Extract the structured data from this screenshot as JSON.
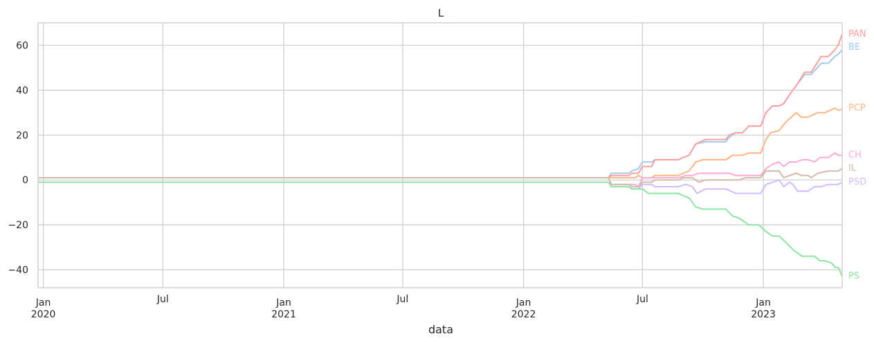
{
  "chart_data": {
    "type": "line",
    "title": "L",
    "xlabel": "data",
    "ylabel": "",
    "xlim": [
      "2019-12-24",
      "2023-05-01"
    ],
    "ylim": [
      -48,
      70
    ],
    "yticks": [
      -40,
      -20,
      0,
      20,
      40,
      60
    ],
    "xticks": [
      {
        "date": "2020-01-01",
        "label": "Jan",
        "sublabel": "2020"
      },
      {
        "date": "2020-07-01",
        "label": "Jul",
        "sublabel": ""
      },
      {
        "date": "2021-01-01",
        "label": "Jan",
        "sublabel": "2021"
      },
      {
        "date": "2021-07-01",
        "label": "Jul",
        "sublabel": ""
      },
      {
        "date": "2022-01-01",
        "label": "Jan",
        "sublabel": "2022"
      },
      {
        "date": "2022-07-01",
        "label": "Jul",
        "sublabel": ""
      },
      {
        "date": "2023-01-01",
        "label": "Jan",
        "sublabel": "2023"
      }
    ],
    "grid": true,
    "legend": "end-of-line labels",
    "series": [
      {
        "name": "BE",
        "color": "#a1c9f4",
        "points": [
          [
            "2019-12-24",
            1
          ],
          [
            "2022-05-10",
            1
          ],
          [
            "2022-05-15",
            3
          ],
          [
            "2022-06-10",
            3
          ],
          [
            "2022-06-15",
            4
          ],
          [
            "2022-06-25",
            5
          ],
          [
            "2022-07-01",
            8
          ],
          [
            "2022-07-15",
            8
          ],
          [
            "2022-07-20",
            9
          ],
          [
            "2022-08-25",
            9
          ],
          [
            "2022-09-01",
            10
          ],
          [
            "2022-09-10",
            11
          ],
          [
            "2022-09-20",
            16
          ],
          [
            "2022-10-05",
            17
          ],
          [
            "2022-11-05",
            17
          ],
          [
            "2022-11-10",
            19
          ],
          [
            "2022-11-20",
            21
          ],
          [
            "2022-11-30",
            21
          ],
          [
            "2022-12-10",
            24
          ],
          [
            "2022-12-28",
            24
          ],
          [
            "2023-01-05",
            30
          ],
          [
            "2023-01-15",
            33
          ],
          [
            "2023-01-25",
            33
          ],
          [
            "2023-02-01",
            34
          ],
          [
            "2023-02-10",
            38
          ],
          [
            "2023-02-20",
            42
          ],
          [
            "2023-03-05",
            47
          ],
          [
            "2023-03-15",
            47
          ],
          [
            "2023-03-30",
            52
          ],
          [
            "2023-04-10",
            52
          ],
          [
            "2023-04-20",
            55
          ],
          [
            "2023-04-25",
            56
          ],
          [
            "2023-05-01",
            58
          ]
        ]
      },
      {
        "name": "PAN",
        "color": "#ff9f9b",
        "points": [
          [
            "2019-12-24",
            1
          ],
          [
            "2022-05-10",
            1
          ],
          [
            "2022-05-15",
            2
          ],
          [
            "2022-06-10",
            2
          ],
          [
            "2022-06-15",
            3
          ],
          [
            "2022-06-25",
            3
          ],
          [
            "2022-07-01",
            6
          ],
          [
            "2022-07-15",
            6
          ],
          [
            "2022-07-20",
            9
          ],
          [
            "2022-08-25",
            9
          ],
          [
            "2022-09-01",
            10
          ],
          [
            "2022-09-10",
            11
          ],
          [
            "2022-09-20",
            16
          ],
          [
            "2022-10-05",
            18
          ],
          [
            "2022-11-05",
            18
          ],
          [
            "2022-11-10",
            20
          ],
          [
            "2022-11-20",
            21
          ],
          [
            "2022-11-30",
            21
          ],
          [
            "2022-12-10",
            24
          ],
          [
            "2022-12-28",
            24
          ],
          [
            "2023-01-05",
            30
          ],
          [
            "2023-01-15",
            33
          ],
          [
            "2023-01-25",
            33
          ],
          [
            "2023-02-01",
            34
          ],
          [
            "2023-02-10",
            38
          ],
          [
            "2023-02-20",
            42
          ],
          [
            "2023-03-05",
            48
          ],
          [
            "2023-03-15",
            48
          ],
          [
            "2023-03-30",
            55
          ],
          [
            "2023-04-10",
            55
          ],
          [
            "2023-04-20",
            58
          ],
          [
            "2023-04-25",
            60
          ],
          [
            "2023-05-01",
            65
          ]
        ]
      },
      {
        "name": "PCP",
        "color": "#ffb482",
        "points": [
          [
            "2019-12-24",
            1
          ],
          [
            "2022-05-10",
            1
          ],
          [
            "2022-05-15",
            1
          ],
          [
            "2022-06-20",
            1
          ],
          [
            "2022-06-25",
            2
          ],
          [
            "2022-07-01",
            1
          ],
          [
            "2022-07-15",
            1
          ],
          [
            "2022-07-20",
            2
          ],
          [
            "2022-08-25",
            2
          ],
          [
            "2022-09-01",
            3
          ],
          [
            "2022-09-10",
            4
          ],
          [
            "2022-09-20",
            8
          ],
          [
            "2022-10-01",
            9
          ],
          [
            "2022-11-05",
            9
          ],
          [
            "2022-11-15",
            11
          ],
          [
            "2022-11-30",
            11
          ],
          [
            "2022-12-10",
            12
          ],
          [
            "2022-12-28",
            12
          ],
          [
            "2023-01-05",
            18
          ],
          [
            "2023-01-12",
            21
          ],
          [
            "2023-01-25",
            22
          ],
          [
            "2023-02-05",
            26
          ],
          [
            "2023-02-20",
            30
          ],
          [
            "2023-02-28",
            28
          ],
          [
            "2023-03-10",
            28
          ],
          [
            "2023-03-25",
            30
          ],
          [
            "2023-04-05",
            30
          ],
          [
            "2023-04-20",
            32
          ],
          [
            "2023-04-25",
            31
          ],
          [
            "2023-05-01",
            31.5
          ]
        ]
      },
      {
        "name": "CH",
        "color": "#ffa9d7",
        "points": [
          [
            "2019-12-24",
            -1
          ],
          [
            "2022-05-10",
            -1
          ],
          [
            "2022-05-15",
            -2
          ],
          [
            "2022-06-20",
            -2
          ],
          [
            "2022-06-25",
            -3
          ],
          [
            "2022-07-01",
            1
          ],
          [
            "2022-07-15",
            1
          ],
          [
            "2022-07-20",
            1
          ],
          [
            "2022-08-25",
            1
          ],
          [
            "2022-09-05",
            2
          ],
          [
            "2022-09-15",
            2
          ],
          [
            "2022-09-25",
            3
          ],
          [
            "2022-11-10",
            3
          ],
          [
            "2022-11-20",
            2
          ],
          [
            "2022-12-28",
            2
          ],
          [
            "2023-01-05",
            5
          ],
          [
            "2023-01-15",
            7
          ],
          [
            "2023-01-25",
            8
          ],
          [
            "2023-02-01",
            6
          ],
          [
            "2023-02-10",
            8
          ],
          [
            "2023-02-20",
            8
          ],
          [
            "2023-03-01",
            9
          ],
          [
            "2023-03-10",
            9
          ],
          [
            "2023-03-20",
            8
          ],
          [
            "2023-03-28",
            10
          ],
          [
            "2023-04-10",
            10
          ],
          [
            "2023-04-20",
            12
          ],
          [
            "2023-04-25",
            11
          ],
          [
            "2023-05-01",
            11
          ]
        ]
      },
      {
        "name": "IL",
        "color": "#d0bbaa",
        "points": [
          [
            "2019-12-24",
            1
          ],
          [
            "2022-05-10",
            1
          ],
          [
            "2022-05-15",
            -2
          ],
          [
            "2022-06-10",
            -2
          ],
          [
            "2022-06-15",
            -3
          ],
          [
            "2022-06-25",
            -3
          ],
          [
            "2022-07-01",
            -1
          ],
          [
            "2022-07-15",
            -1
          ],
          [
            "2022-07-20",
            0
          ],
          [
            "2022-08-25",
            0
          ],
          [
            "2022-09-01",
            1
          ],
          [
            "2022-09-15",
            1
          ],
          [
            "2022-09-25",
            -1
          ],
          [
            "2022-10-05",
            0
          ],
          [
            "2022-11-25",
            0
          ],
          [
            "2022-12-05",
            1
          ],
          [
            "2022-12-28",
            1
          ],
          [
            "2023-01-05",
            4
          ],
          [
            "2023-01-25",
            4
          ],
          [
            "2023-02-01",
            1
          ],
          [
            "2023-02-20",
            3
          ],
          [
            "2023-02-28",
            2
          ],
          [
            "2023-03-10",
            2
          ],
          [
            "2023-03-15",
            1
          ],
          [
            "2023-03-25",
            3
          ],
          [
            "2023-04-10",
            4
          ],
          [
            "2023-04-25",
            4
          ],
          [
            "2023-05-01",
            5
          ]
        ]
      },
      {
        "name": "PSD",
        "color": "#d0bbff",
        "points": [
          [
            "2019-12-24",
            -1
          ],
          [
            "2022-05-10",
            -1
          ],
          [
            "2022-05-15",
            -3
          ],
          [
            "2022-06-10",
            -3
          ],
          [
            "2022-06-15",
            -4
          ],
          [
            "2022-06-25",
            -4
          ],
          [
            "2022-07-01",
            -2
          ],
          [
            "2022-07-15",
            -2
          ],
          [
            "2022-07-20",
            -3
          ],
          [
            "2022-08-25",
            -3
          ],
          [
            "2022-09-05",
            -2
          ],
          [
            "2022-09-15",
            -3
          ],
          [
            "2022-09-22",
            -6
          ],
          [
            "2022-10-05",
            -4
          ],
          [
            "2022-11-05",
            -4
          ],
          [
            "2022-11-20",
            -6
          ],
          [
            "2022-12-28",
            -6
          ],
          [
            "2023-01-05",
            -2
          ],
          [
            "2023-01-15",
            -1
          ],
          [
            "2023-01-25",
            0
          ],
          [
            "2023-02-01",
            -3
          ],
          [
            "2023-02-10",
            -1
          ],
          [
            "2023-02-15",
            -2
          ],
          [
            "2023-02-22",
            -5
          ],
          [
            "2023-03-10",
            -5
          ],
          [
            "2023-03-20",
            -3
          ],
          [
            "2023-03-30",
            -3
          ],
          [
            "2023-04-10",
            -2
          ],
          [
            "2023-04-25",
            -2
          ],
          [
            "2023-05-01",
            -1
          ]
        ]
      },
      {
        "name": "PS",
        "color": "#8de5a1",
        "points": [
          [
            "2019-12-24",
            -1
          ],
          [
            "2022-05-10",
            -1
          ],
          [
            "2022-05-15",
            -3
          ],
          [
            "2022-06-10",
            -3
          ],
          [
            "2022-06-15",
            -4
          ],
          [
            "2022-06-25",
            -4
          ],
          [
            "2022-07-01",
            -4
          ],
          [
            "2022-07-10",
            -6
          ],
          [
            "2022-08-25",
            -6
          ],
          [
            "2022-09-01",
            -7
          ],
          [
            "2022-09-10",
            -8
          ],
          [
            "2022-09-20",
            -12
          ],
          [
            "2022-10-01",
            -13
          ],
          [
            "2022-11-05",
            -13
          ],
          [
            "2022-11-15",
            -16
          ],
          [
            "2022-11-25",
            -17
          ],
          [
            "2022-12-10",
            -20
          ],
          [
            "2022-12-25",
            -20
          ],
          [
            "2023-01-05",
            -23
          ],
          [
            "2023-01-15",
            -25
          ],
          [
            "2023-01-25",
            -25
          ],
          [
            "2023-02-05",
            -28
          ],
          [
            "2023-02-15",
            -31
          ],
          [
            "2023-03-01",
            -34
          ],
          [
            "2023-03-20",
            -34
          ],
          [
            "2023-03-28",
            -36
          ],
          [
            "2023-04-05",
            -36
          ],
          [
            "2023-04-15",
            -37
          ],
          [
            "2023-04-20",
            -39
          ],
          [
            "2023-04-25",
            -39
          ],
          [
            "2023-05-01",
            -43
          ]
        ]
      }
    ]
  }
}
